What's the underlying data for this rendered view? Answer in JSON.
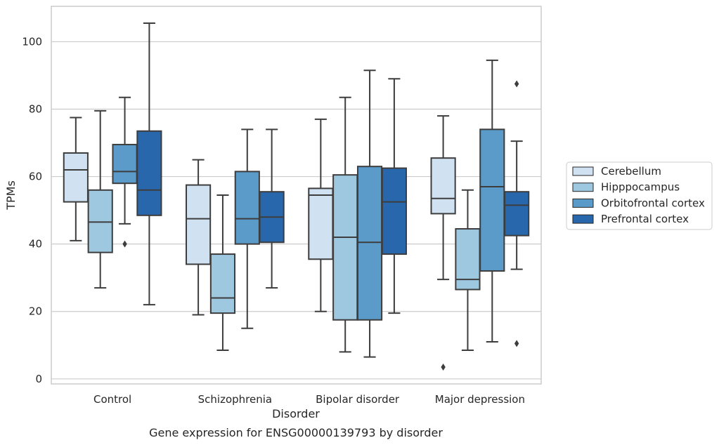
{
  "chart_data": {
    "type": "box",
    "xlabel": "Disorder",
    "ylabel": "TPMs",
    "caption": "Gene expression for ENSG00000139793 by disorder",
    "categories": [
      "Control",
      "Schizophrenia",
      "Bipolar disorder",
      "Major depression"
    ],
    "ylim": [
      -1.5,
      110.5
    ],
    "yticks": [
      0,
      20,
      40,
      60,
      80,
      100
    ],
    "grid": "horizontal",
    "legend_position": "right",
    "series": [
      {
        "name": "Cerebellum",
        "color": "#d0e1f2",
        "boxes": [
          {
            "whisker_low": 41,
            "q1": 52.5,
            "median": 62,
            "q3": 67,
            "whisker_high": 77.5,
            "outliers": []
          },
          {
            "whisker_low": 19,
            "q1": 34,
            "median": 47.5,
            "q3": 57.5,
            "whisker_high": 65,
            "outliers": []
          },
          {
            "whisker_low": 20,
            "q1": 35.5,
            "median": 54.5,
            "q3": 56.5,
            "whisker_high": 77,
            "outliers": []
          },
          {
            "whisker_low": 29.5,
            "q1": 49,
            "median": 53.5,
            "q3": 65.5,
            "whisker_high": 78,
            "outliers": [
              3.5
            ]
          }
        ]
      },
      {
        "name": "Hipppocampus",
        "color": "#9ec7e0",
        "boxes": [
          {
            "whisker_low": 27,
            "q1": 37.5,
            "median": 46.5,
            "q3": 56,
            "whisker_high": 79.5,
            "outliers": []
          },
          {
            "whisker_low": 8.5,
            "q1": 19.5,
            "median": 24,
            "q3": 37,
            "whisker_high": 54.5,
            "outliers": []
          },
          {
            "whisker_low": 8,
            "q1": 17.5,
            "median": 42,
            "q3": 60.5,
            "whisker_high": 83.5,
            "outliers": []
          },
          {
            "whisker_low": 8.5,
            "q1": 26.5,
            "median": 29.5,
            "q3": 44.5,
            "whisker_high": 56,
            "outliers": []
          }
        ]
      },
      {
        "name": "Orbitofrontal cortex",
        "color": "#5a9bc9",
        "boxes": [
          {
            "whisker_low": 46,
            "q1": 58,
            "median": 61.5,
            "q3": 69.5,
            "whisker_high": 83.5,
            "outliers": [
              40
            ]
          },
          {
            "whisker_low": 15,
            "q1": 40,
            "median": 47.5,
            "q3": 61.5,
            "whisker_high": 74,
            "outliers": []
          },
          {
            "whisker_low": 6.5,
            "q1": 17.5,
            "median": 40.5,
            "q3": 63,
            "whisker_high": 91.5,
            "outliers": []
          },
          {
            "whisker_low": 11,
            "q1": 32,
            "median": 57,
            "q3": 74,
            "whisker_high": 94.5,
            "outliers": []
          }
        ]
      },
      {
        "name": "Prefrontal cortex",
        "color": "#2967ac",
        "boxes": [
          {
            "whisker_low": 22,
            "q1": 48.5,
            "median": 56,
            "q3": 73.5,
            "whisker_high": 105.5,
            "outliers": []
          },
          {
            "whisker_low": 27,
            "q1": 40.5,
            "median": 48,
            "q3": 55.5,
            "whisker_high": 74,
            "outliers": []
          },
          {
            "whisker_low": 19.5,
            "q1": 37,
            "median": 52.5,
            "q3": 62.5,
            "whisker_high": 89,
            "outliers": []
          },
          {
            "whisker_low": 32.5,
            "q1": 42.5,
            "median": 51.5,
            "q3": 55.5,
            "whisker_high": 70.5,
            "outliers": [
              87.5,
              10.5
            ]
          }
        ]
      }
    ]
  }
}
